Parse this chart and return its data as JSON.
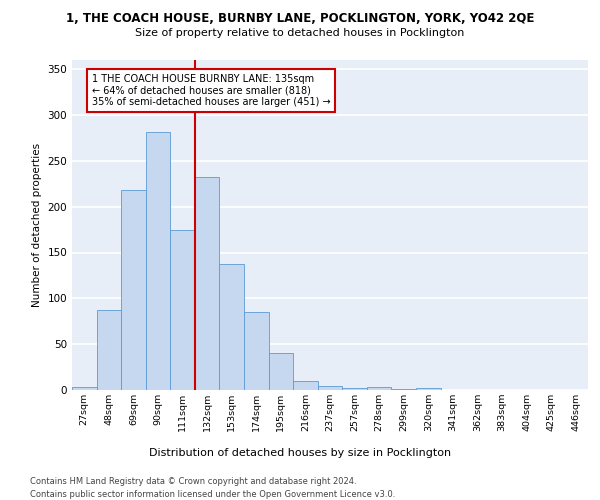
{
  "title": "1, THE COACH HOUSE, BURNBY LANE, POCKLINGTON, YORK, YO42 2QE",
  "subtitle": "Size of property relative to detached houses in Pocklington",
  "xlabel": "Distribution of detached houses by size in Pocklington",
  "ylabel": "Number of detached properties",
  "categories": [
    "27sqm",
    "48sqm",
    "69sqm",
    "90sqm",
    "111sqm",
    "132sqm",
    "153sqm",
    "174sqm",
    "195sqm",
    "216sqm",
    "237sqm",
    "257sqm",
    "278sqm",
    "299sqm",
    "320sqm",
    "341sqm",
    "362sqm",
    "383sqm",
    "404sqm",
    "425sqm",
    "446sqm"
  ],
  "bar_heights": [
    3,
    87,
    218,
    282,
    175,
    232,
    138,
    85,
    40,
    10,
    4,
    2,
    3,
    1,
    2,
    0,
    0,
    0,
    0,
    0,
    0
  ],
  "vline_x": 4.5,
  "annotation_line1": "1 THE COACH HOUSE BURNBY LANE: 135sqm",
  "annotation_line2": "← 64% of detached houses are smaller (818)",
  "annotation_line3": "35% of semi-detached houses are larger (451) →",
  "bar_color": "#c5d8f0",
  "bar_edge_color": "#5b9bd5",
  "vline_color": "#cc0000",
  "annotation_box_edge": "#cc0000",
  "ylim": [
    0,
    360
  ],
  "yticks": [
    0,
    50,
    100,
    150,
    200,
    250,
    300,
    350
  ],
  "footer1": "Contains HM Land Registry data © Crown copyright and database right 2024.",
  "footer2": "Contains public sector information licensed under the Open Government Licence v3.0.",
  "bg_color": "#e8eef8",
  "grid_color": "#ffffff"
}
